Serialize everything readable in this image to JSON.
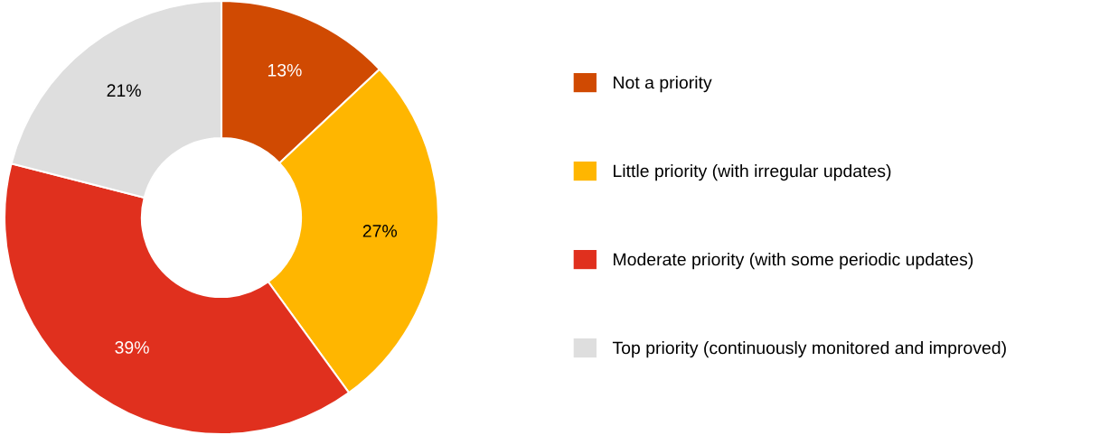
{
  "chart_data": {
    "type": "donut",
    "categories": [
      "Not a priority",
      "Little priority (with irregular updates)",
      "Moderate priority (with some periodic updates)",
      "Top priority (continuously monitored and improved)"
    ],
    "values": [
      13,
      27,
      39,
      21
    ],
    "colors": [
      "#d04a02",
      "#ffb600",
      "#e0301e",
      "#dedede"
    ],
    "value_labels": [
      "13%",
      "27%",
      "39%",
      "21%"
    ],
    "legend": "right"
  }
}
